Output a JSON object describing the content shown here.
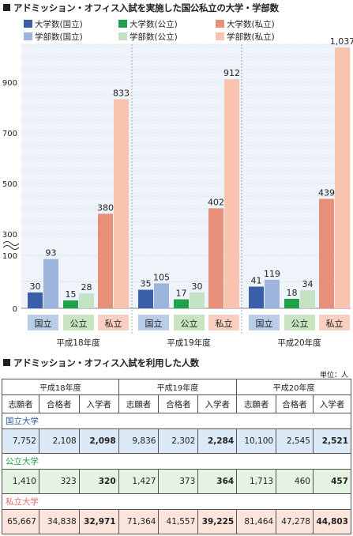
{
  "chart_data": {
    "type": "bar",
    "title": "アドミッション・オフィス入試を実施した国公私立の大学・学部数",
    "categories": [
      "平成18年度",
      "平成19年度",
      "平成20年度"
    ],
    "sublabels": [
      "国立",
      "公立",
      "私立"
    ],
    "series": [
      {
        "name": "大学数(国立)",
        "color": "#3a5fa8",
        "values": [
          30,
          35,
          41
        ]
      },
      {
        "name": "学部数(国立)",
        "color": "#9db4dc",
        "values": [
          93,
          105,
          119
        ]
      },
      {
        "name": "大学数(公立)",
        "color": "#1fa24a",
        "values": [
          15,
          17,
          18
        ]
      },
      {
        "name": "学部数(公立)",
        "color": "#c4e2c4",
        "values": [
          28,
          30,
          34
        ]
      },
      {
        "name": "大学数(私立)",
        "color": "#e8907a",
        "values": [
          380,
          402,
          439
        ]
      },
      {
        "name": "学部数(私立)",
        "color": "#f8c4b0",
        "values": [
          833,
          912,
          1037
        ]
      }
    ],
    "data_labels": [
      [
        "30",
        "35",
        "41"
      ],
      [
        "93",
        "105",
        "119"
      ],
      [
        "15",
        "17",
        "18"
      ],
      [
        "28",
        "30",
        "34"
      ],
      [
        "380",
        "402",
        "439"
      ],
      [
        "833",
        "912",
        "1,037"
      ]
    ],
    "y_ticks": [
      "0",
      "100",
      "300",
      "500",
      "700",
      "900"
    ],
    "y_break": [
      100,
      300
    ],
    "ylim": [
      0,
      1060
    ],
    "grid": true,
    "legend_position": "top"
  },
  "table": {
    "title": "アドミッション・オフィス入試を利用した人数",
    "unit": "単位：人",
    "years": [
      "平成18年度",
      "平成19年度",
      "平成20年度"
    ],
    "columns": [
      "志願者",
      "合格者",
      "入学者"
    ],
    "groups": [
      {
        "label": "国立大学",
        "label_color": "#2a55a0",
        "row_class": "r-nat",
        "values": [
          "7,752",
          "2,108",
          "2,098",
          "9,836",
          "2,302",
          "2,284",
          "10,100",
          "2,545",
          "2,521"
        ]
      },
      {
        "label": "公立大学",
        "label_color": "#1e9a44",
        "row_class": "r-pub",
        "values": [
          "1,410",
          "323",
          "320",
          "1,427",
          "373",
          "364",
          "1,713",
          "460",
          "457"
        ]
      },
      {
        "label": "私立大学",
        "label_color": "#e0686a",
        "row_class": "r-pri",
        "values": [
          "65,667",
          "34,838",
          "32,971",
          "71,364",
          "41,557",
          "39,225",
          "81,464",
          "47,278",
          "44,803"
        ]
      }
    ]
  }
}
